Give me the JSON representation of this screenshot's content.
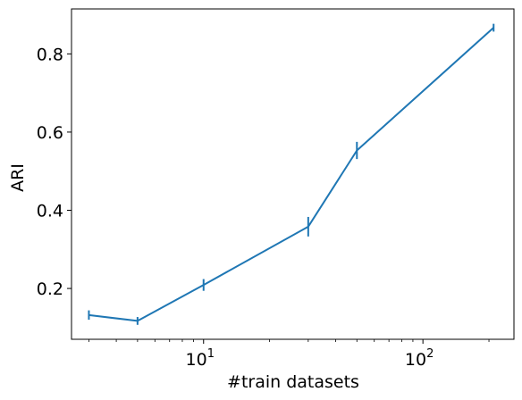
{
  "chart_data": {
    "type": "line",
    "xlabel": "#train datasets",
    "ylabel": "ARI",
    "x_scale": "log",
    "xlim": [
      2.5,
      260
    ],
    "ylim": [
      0.07,
      0.915
    ],
    "grid": false,
    "x_ticks": [
      {
        "value": 10,
        "base": "10",
        "exp": "1"
      },
      {
        "value": 100,
        "base": "10",
        "exp": "2"
      }
    ],
    "x_minor_ticks": [
      3,
      4,
      5,
      6,
      7,
      8,
      9,
      20,
      30,
      40,
      50,
      60,
      70,
      80,
      90,
      200
    ],
    "y_ticks": [
      {
        "value": 0.2,
        "label": "0.2"
      },
      {
        "value": 0.4,
        "label": "0.4"
      },
      {
        "value": 0.6,
        "label": "0.6"
      },
      {
        "value": 0.8,
        "label": "0.8"
      }
    ],
    "series": [
      {
        "color": "#1f77b4",
        "x": [
          3,
          5,
          10,
          30,
          50,
          210
        ],
        "y": [
          0.132,
          0.117,
          0.209,
          0.358,
          0.553,
          0.867
        ],
        "yerr": [
          0.012,
          0.01,
          0.015,
          0.025,
          0.022,
          0.01
        ]
      }
    ]
  }
}
